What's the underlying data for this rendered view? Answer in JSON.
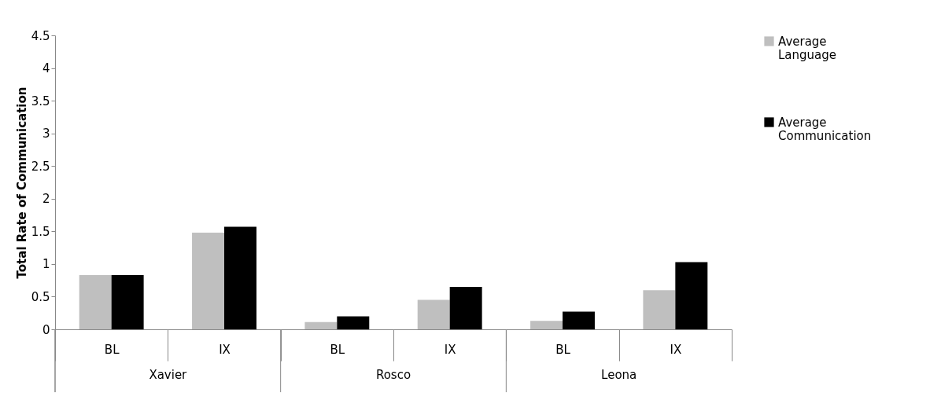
{
  "chart_data": {
    "type": "bar",
    "ylabel": "Total Rate of Communication",
    "categories": [
      "BL",
      "IX",
      "BL",
      "IX",
      "BL",
      "IX"
    ],
    "annotations": [
      "Xavier",
      "Rosco",
      "Leona"
    ],
    "series": [
      {
        "name": "Average Language",
        "color": "#bfbfbf",
        "values": [
          0.83,
          1.48,
          0.11,
          0.45,
          0.13,
          0.6
        ]
      },
      {
        "name": "Average Communication",
        "color": "#000000",
        "values": [
          0.83,
          1.57,
          0.2,
          0.65,
          0.27,
          1.03
        ]
      }
    ],
    "ylim": [
      0,
      4.5
    ],
    "yticks": [
      0,
      0.5,
      1,
      1.5,
      2,
      2.5,
      3,
      3.5,
      4,
      4.5
    ],
    "grid": false,
    "legend": "right"
  }
}
